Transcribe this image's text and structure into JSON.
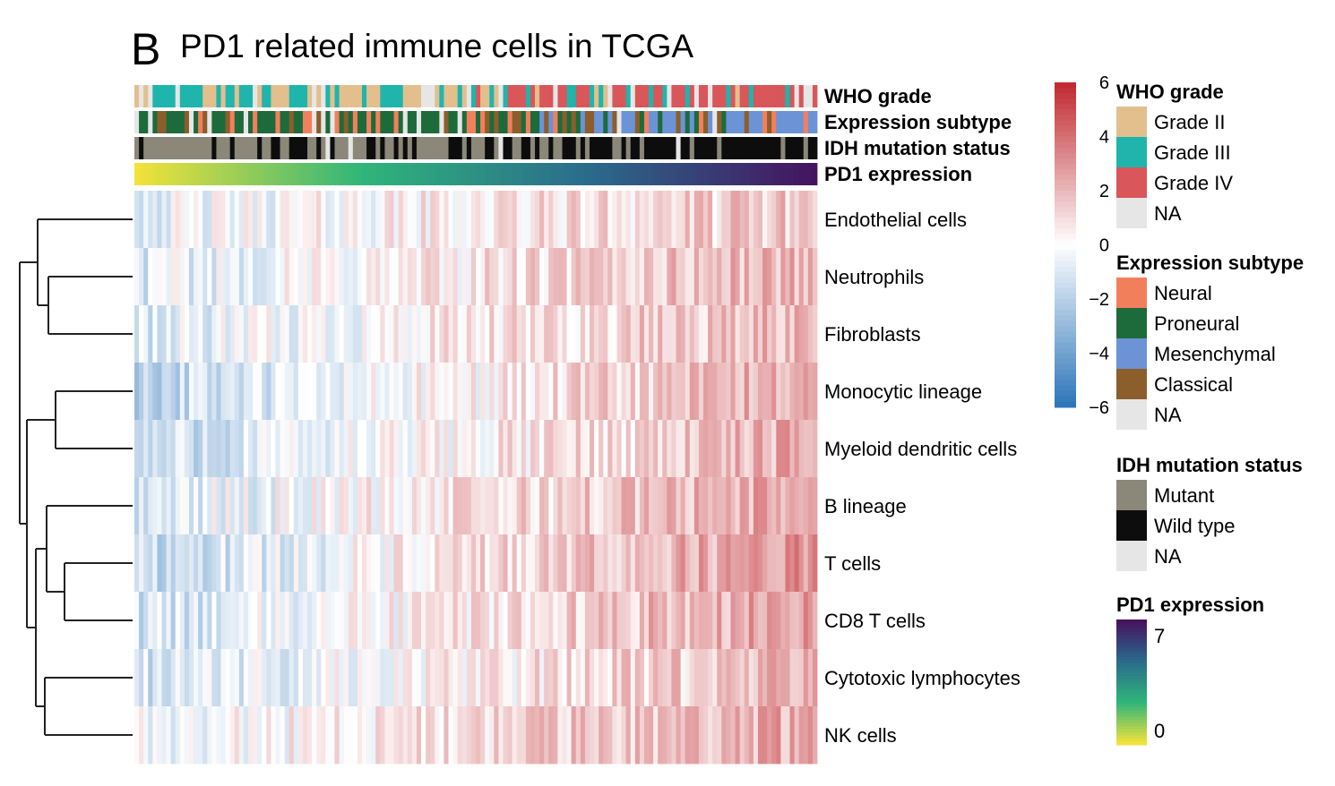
{
  "panel_letter": "B",
  "title": "PD1 related immune cells in TCGA",
  "chart_data": {
    "type": "heatmap",
    "title": "PD1 related immune cells in TCGA",
    "n_samples": 150,
    "column_order": "samples sorted by PD1 expression (low to high, left to right)",
    "rows": [
      {
        "name": "Endothelial cells",
        "trend_low": -0.6,
        "trend_high": 1.6
      },
      {
        "name": "Neutrophils",
        "trend_low": -0.9,
        "trend_high": 2.2
      },
      {
        "name": "Fibroblasts",
        "trend_low": -1.0,
        "trend_high": 2.0
      },
      {
        "name": "Monocytic lineage",
        "trend_low": -1.8,
        "trend_high": 2.4
      },
      {
        "name": "Myeloid dendritic cells",
        "trend_low": -1.6,
        "trend_high": 2.3
      },
      {
        "name": "B lineage",
        "trend_low": -1.0,
        "trend_high": 2.6
      },
      {
        "name": "T cells",
        "trend_low": -1.6,
        "trend_high": 3.0
      },
      {
        "name": "CD8 T cells",
        "trend_low": -1.4,
        "trend_high": 2.8
      },
      {
        "name": "Cytotoxic lymphocytes",
        "trend_low": -1.2,
        "trend_high": 2.0
      },
      {
        "name": "NK cells",
        "trend_low": -0.4,
        "trend_high": 2.4
      }
    ],
    "annotation_tracks": [
      "WHO grade",
      "Expression subtype",
      "IDH mutation status",
      "PD1 expression"
    ],
    "color_scale": {
      "ticks": [
        6,
        4,
        2,
        0,
        -2,
        -4,
        -6
      ],
      "tick_labels": [
        "6",
        "4",
        "2",
        "0",
        "−2",
        "−4",
        "−6"
      ],
      "range": [
        -6,
        6
      ],
      "low_color": "#2b74b8",
      "mid_color": "#ffffff",
      "high_color": "#c0272d"
    },
    "dendrogram": "hierarchical clustering of rows (left side)"
  },
  "legends": [
    {
      "title": "WHO grade",
      "items": [
        {
          "label": "Grade II",
          "color": "#e3bf8d"
        },
        {
          "label": "Grade III",
          "color": "#1fb5ac"
        },
        {
          "label": "Grade IV",
          "color": "#d9565a"
        },
        {
          "label": "NA",
          "color": "#e6e6e6"
        }
      ]
    },
    {
      "title": "Expression subtype",
      "items": [
        {
          "label": "Neural",
          "color": "#f27f5c"
        },
        {
          "label": "Proneural",
          "color": "#1d6b3b"
        },
        {
          "label": "Mesenchymal",
          "color": "#6b93d6"
        },
        {
          "label": "Classical",
          "color": "#8b5e2b"
        },
        {
          "label": "NA",
          "color": "#e6e6e6"
        }
      ]
    },
    {
      "title": "IDH mutation status",
      "items": [
        {
          "label": "Mutant",
          "color": "#8b8779"
        },
        {
          "label": "Wild type",
          "color": "#0d0d0d"
        },
        {
          "label": "NA",
          "color": "#e6e6e6"
        }
      ]
    },
    {
      "title": "PD1 expression",
      "scale_labels": [
        "7",
        "0"
      ],
      "colors": [
        "#45135f",
        "#2a6b8c",
        "#2fb57a",
        "#f2e23a"
      ]
    }
  ]
}
